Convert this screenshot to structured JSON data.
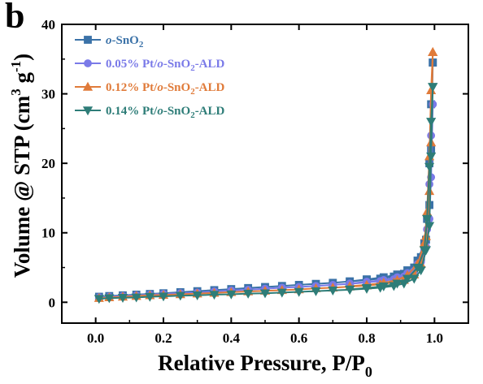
{
  "panel_label": "b",
  "colors": {
    "axis": "#000000"
  },
  "chart_data": {
    "type": "line",
    "title": "",
    "xlabel": "Relative Pressure, P/P0",
    "ylabel": "Volume @ STP (cm3 g-1)",
    "xlim": [
      -0.1,
      1.1
    ],
    "ylim": [
      -3,
      40
    ],
    "xticks": [
      0.0,
      0.2,
      0.4,
      0.6,
      0.8,
      1.0
    ],
    "xtick_labels": [
      "0.0",
      "0.2",
      "0.4",
      "0.6",
      "0.8",
      "1.0"
    ],
    "yticks": [
      0,
      10,
      20,
      30,
      40
    ],
    "ytick_labels": [
      "0",
      "10",
      "20",
      "30",
      "40"
    ],
    "grid": false,
    "legend": "top-left",
    "series": [
      {
        "name": "o-SnO2",
        "legend_parts": [
          {
            "t": "o",
            "i": true
          },
          {
            "t": "-SnO"
          },
          {
            "t": "2",
            "sub": true
          }
        ],
        "color": "#3b72a8",
        "marker": "square",
        "adsorption": [
          [
            0.01,
            0.8
          ],
          [
            0.04,
            0.9
          ],
          [
            0.08,
            1.0
          ],
          [
            0.12,
            1.1
          ],
          [
            0.16,
            1.2
          ],
          [
            0.2,
            1.3
          ],
          [
            0.25,
            1.45
          ],
          [
            0.3,
            1.6
          ],
          [
            0.35,
            1.75
          ],
          [
            0.4,
            1.9
          ],
          [
            0.45,
            2.05
          ],
          [
            0.5,
            2.2
          ],
          [
            0.55,
            2.35
          ],
          [
            0.6,
            2.5
          ],
          [
            0.65,
            2.65
          ],
          [
            0.7,
            2.8
          ],
          [
            0.75,
            3.0
          ],
          [
            0.8,
            3.2
          ],
          [
            0.84,
            3.4
          ],
          [
            0.88,
            3.7
          ],
          [
            0.91,
            4.1
          ],
          [
            0.94,
            5.0
          ],
          [
            0.96,
            6.5
          ],
          [
            0.975,
            9.0
          ],
          [
            0.985,
            14.0
          ],
          [
            0.99,
            22.0
          ],
          [
            0.995,
            34.5
          ]
        ],
        "desorption": [
          [
            0.995,
            34.5
          ],
          [
            0.99,
            28.5
          ],
          [
            0.985,
            20.0
          ],
          [
            0.978,
            12.0
          ],
          [
            0.97,
            8.5
          ],
          [
            0.95,
            6.0
          ],
          [
            0.92,
            4.6
          ],
          [
            0.89,
            4.0
          ],
          [
            0.85,
            3.6
          ],
          [
            0.8,
            3.3
          ],
          [
            0.75,
            3.0
          ]
        ]
      },
      {
        "name": "0.05% Pt/o-SnO2-ALD",
        "legend_parts": [
          {
            "t": "0.05% Pt/"
          },
          {
            "t": "o",
            "i": true
          },
          {
            "t": "-SnO"
          },
          {
            "t": "2",
            "sub": true
          },
          {
            "t": "-ALD"
          }
        ],
        "color": "#7a7ae8",
        "marker": "circle",
        "adsorption": [
          [
            0.01,
            0.7
          ],
          [
            0.04,
            0.8
          ],
          [
            0.08,
            0.9
          ],
          [
            0.12,
            1.0
          ],
          [
            0.16,
            1.1
          ],
          [
            0.2,
            1.2
          ],
          [
            0.25,
            1.3
          ],
          [
            0.3,
            1.4
          ],
          [
            0.35,
            1.55
          ],
          [
            0.4,
            1.7
          ],
          [
            0.45,
            1.8
          ],
          [
            0.5,
            1.95
          ],
          [
            0.55,
            2.1
          ],
          [
            0.6,
            2.2
          ],
          [
            0.65,
            2.35
          ],
          [
            0.7,
            2.5
          ],
          [
            0.75,
            2.65
          ],
          [
            0.8,
            2.85
          ],
          [
            0.84,
            3.05
          ],
          [
            0.88,
            3.3
          ],
          [
            0.91,
            3.7
          ],
          [
            0.94,
            4.5
          ],
          [
            0.96,
            5.8
          ],
          [
            0.975,
            8.0
          ],
          [
            0.985,
            12.0
          ],
          [
            0.99,
            18.0
          ],
          [
            0.995,
            28.5
          ]
        ],
        "desorption": [
          [
            0.995,
            28.5
          ],
          [
            0.99,
            24.0
          ],
          [
            0.985,
            17.0
          ],
          [
            0.978,
            10.5
          ],
          [
            0.97,
            7.5
          ],
          [
            0.95,
            5.5
          ],
          [
            0.92,
            4.2
          ],
          [
            0.89,
            3.6
          ],
          [
            0.85,
            3.2
          ],
          [
            0.8,
            2.95
          ],
          [
            0.75,
            2.7
          ]
        ]
      },
      {
        "name": "0.12% Pt/o-SnO2-ALD",
        "legend_parts": [
          {
            "t": "0.12% Pt/"
          },
          {
            "t": "o",
            "i": true
          },
          {
            "t": "-SnO"
          },
          {
            "t": "2",
            "sub": true
          },
          {
            "t": "-ALD"
          }
        ],
        "color": "#e07b3a",
        "marker": "triangle-up",
        "adsorption": [
          [
            0.01,
            0.6
          ],
          [
            0.04,
            0.7
          ],
          [
            0.08,
            0.8
          ],
          [
            0.12,
            0.9
          ],
          [
            0.16,
            1.0
          ],
          [
            0.2,
            1.05
          ],
          [
            0.25,
            1.15
          ],
          [
            0.3,
            1.25
          ],
          [
            0.35,
            1.35
          ],
          [
            0.4,
            1.45
          ],
          [
            0.45,
            1.55
          ],
          [
            0.5,
            1.65
          ],
          [
            0.55,
            1.75
          ],
          [
            0.6,
            1.85
          ],
          [
            0.65,
            2.0
          ],
          [
            0.7,
            2.1
          ],
          [
            0.75,
            2.25
          ],
          [
            0.8,
            2.4
          ],
          [
            0.84,
            2.6
          ],
          [
            0.88,
            2.85
          ],
          [
            0.91,
            3.2
          ],
          [
            0.94,
            4.0
          ],
          [
            0.96,
            5.5
          ],
          [
            0.975,
            9.5
          ],
          [
            0.985,
            16.0
          ],
          [
            0.99,
            23.0
          ],
          [
            0.995,
            36.0
          ]
        ],
        "desorption": [
          [
            0.995,
            36.0
          ],
          [
            0.99,
            30.5
          ],
          [
            0.985,
            21.0
          ],
          [
            0.978,
            13.0
          ],
          [
            0.97,
            8.5
          ],
          [
            0.95,
            5.5
          ],
          [
            0.92,
            3.9
          ],
          [
            0.89,
            3.2
          ],
          [
            0.85,
            2.8
          ],
          [
            0.8,
            2.5
          ],
          [
            0.75,
            2.3
          ]
        ]
      },
      {
        "name": "0.14% Pt/o-SnO2-ALD",
        "legend_parts": [
          {
            "t": "0.14% Pt/"
          },
          {
            "t": "o",
            "i": true
          },
          {
            "t": "-SnO"
          },
          {
            "t": "2",
            "sub": true
          },
          {
            "t": "-ALD"
          }
        ],
        "color": "#2e7d78",
        "marker": "triangle-down",
        "adsorption": [
          [
            0.01,
            0.5
          ],
          [
            0.04,
            0.6
          ],
          [
            0.08,
            0.65
          ],
          [
            0.12,
            0.7
          ],
          [
            0.16,
            0.8
          ],
          [
            0.2,
            0.85
          ],
          [
            0.25,
            0.95
          ],
          [
            0.3,
            1.0
          ],
          [
            0.35,
            1.1
          ],
          [
            0.4,
            1.15
          ],
          [
            0.45,
            1.25
          ],
          [
            0.5,
            1.3
          ],
          [
            0.55,
            1.4
          ],
          [
            0.6,
            1.5
          ],
          [
            0.65,
            1.6
          ],
          [
            0.7,
            1.7
          ],
          [
            0.75,
            1.8
          ],
          [
            0.8,
            1.95
          ],
          [
            0.84,
            2.1
          ],
          [
            0.88,
            2.35
          ],
          [
            0.91,
            2.7
          ],
          [
            0.94,
            3.4
          ],
          [
            0.96,
            4.6
          ],
          [
            0.975,
            7.5
          ],
          [
            0.985,
            11.0
          ],
          [
            0.99,
            21.0
          ],
          [
            0.995,
            31.0
          ]
        ],
        "desorption": [
          [
            0.995,
            31.0
          ],
          [
            0.99,
            26.0
          ],
          [
            0.985,
            19.5
          ],
          [
            0.978,
            12.0
          ],
          [
            0.97,
            7.5
          ],
          [
            0.95,
            5.0
          ],
          [
            0.92,
            3.4
          ],
          [
            0.89,
            2.7
          ],
          [
            0.85,
            2.3
          ],
          [
            0.8,
            2.05
          ],
          [
            0.75,
            1.85
          ]
        ]
      }
    ]
  }
}
